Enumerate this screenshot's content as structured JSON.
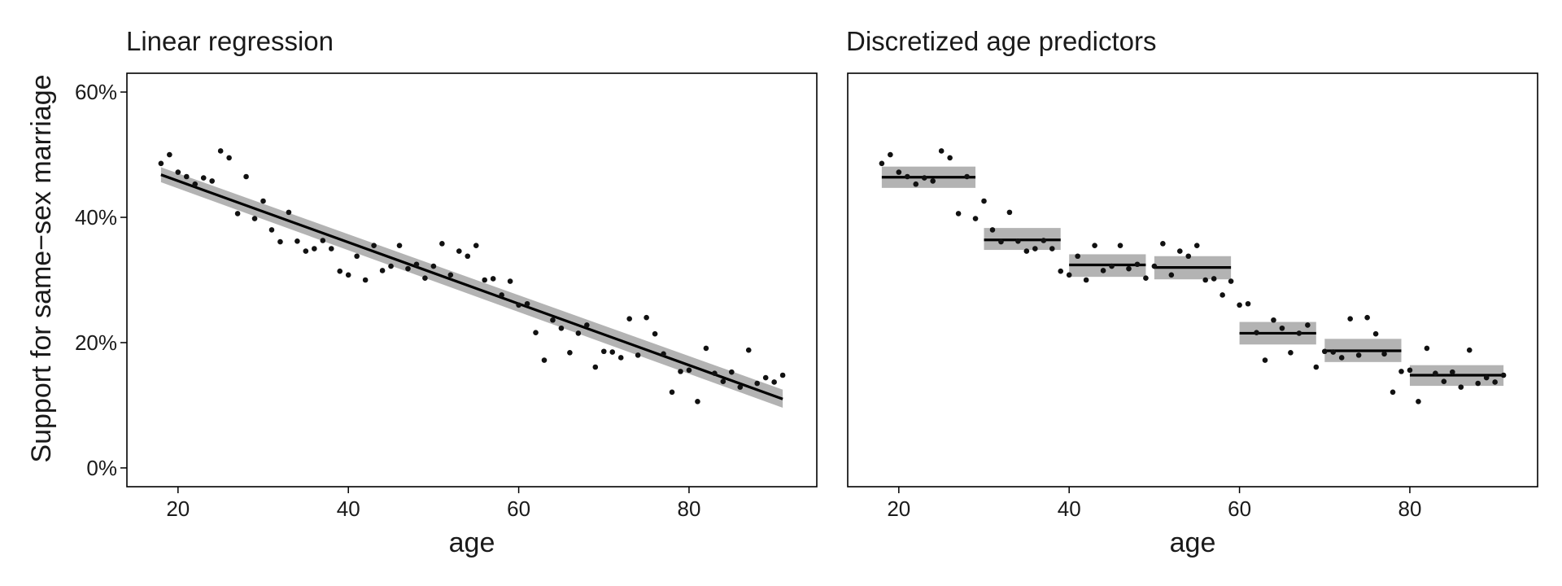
{
  "chart_data": [
    {
      "type": "scatter",
      "title": "Linear regression",
      "xlabel": "age",
      "ylabel": "Support for same−sex marriage",
      "xlim": [
        14,
        95
      ],
      "ylim": [
        -3,
        63
      ],
      "xticks": [
        20,
        40,
        60,
        80
      ],
      "xtick_labels": [
        "20",
        "40",
        "60",
        "80"
      ],
      "yticks": [
        0,
        20,
        40,
        60
      ],
      "ytick_labels": [
        "0%",
        "20%",
        "40%",
        "60%"
      ],
      "grid": false,
      "legend": "none",
      "series": [
        {
          "kind": "points",
          "x": [
            18,
            19,
            20,
            21,
            22,
            23,
            24,
            25,
            26,
            27,
            28,
            29,
            30,
            31,
            32,
            33,
            34,
            35,
            36,
            37,
            38,
            39,
            40,
            41,
            42,
            43,
            44,
            45,
            46,
            47,
            48,
            49,
            50,
            51,
            52,
            53,
            54,
            55,
            56,
            57,
            58,
            59,
            60,
            61,
            62,
            63,
            64,
            65,
            66,
            67,
            68,
            69,
            70,
            71,
            72,
            73,
            74,
            75,
            76,
            77,
            78,
            79,
            80,
            81,
            82,
            83,
            84,
            85,
            86,
            87,
            88,
            89,
            90,
            91
          ],
          "y": [
            48.6,
            50.0,
            47.2,
            46.5,
            45.3,
            46.3,
            45.8,
            50.6,
            49.5,
            40.6,
            46.5,
            39.8,
            42.6,
            38.0,
            36.1,
            40.8,
            36.2,
            34.6,
            35.0,
            36.3,
            35.0,
            31.4,
            30.8,
            33.8,
            30.0,
            35.5,
            31.5,
            32.2,
            35.5,
            31.8,
            32.5,
            30.3,
            32.2,
            35.8,
            30.8,
            34.6,
            33.8,
            35.5,
            30.0,
            30.2,
            27.6,
            29.8,
            26.0,
            26.2,
            21.6,
            17.2,
            23.6,
            22.3,
            18.4,
            21.5,
            22.8,
            16.1,
            18.6,
            18.5,
            17.6,
            23.8,
            18.0,
            24.0,
            21.4,
            18.2,
            12.1,
            15.4,
            15.6,
            10.6,
            19.1,
            15.1,
            13.8,
            15.3,
            12.9,
            18.8,
            13.5,
            14.4,
            13.7,
            14.8
          ]
        },
        {
          "kind": "fit-line",
          "x": [
            18,
            91
          ],
          "y": [
            46.8,
            11.0
          ],
          "ci_lower": [
            45.6,
            9.6
          ],
          "ci_upper": [
            48.0,
            12.5
          ]
        }
      ]
    },
    {
      "type": "scatter",
      "title": "Discretized age predictors",
      "xlabel": "age",
      "ylabel": "",
      "xlim": [
        14,
        95
      ],
      "ylim": [
        -3,
        63
      ],
      "xticks": [
        20,
        40,
        60,
        80
      ],
      "xtick_labels": [
        "20",
        "40",
        "60",
        "80"
      ],
      "grid": false,
      "legend": "none",
      "series": [
        {
          "kind": "points",
          "x": [
            18,
            19,
            20,
            21,
            22,
            23,
            24,
            25,
            26,
            27,
            28,
            29,
            30,
            31,
            32,
            33,
            34,
            35,
            36,
            37,
            38,
            39,
            40,
            41,
            42,
            43,
            44,
            45,
            46,
            47,
            48,
            49,
            50,
            51,
            52,
            53,
            54,
            55,
            56,
            57,
            58,
            59,
            60,
            61,
            62,
            63,
            64,
            65,
            66,
            67,
            68,
            69,
            70,
            71,
            72,
            73,
            74,
            75,
            76,
            77,
            78,
            79,
            80,
            81,
            82,
            83,
            84,
            85,
            86,
            87,
            88,
            89,
            90,
            91
          ],
          "y": [
            48.6,
            50.0,
            47.2,
            46.5,
            45.3,
            46.3,
            45.8,
            50.6,
            49.5,
            40.6,
            46.5,
            39.8,
            42.6,
            38.0,
            36.1,
            40.8,
            36.2,
            34.6,
            35.0,
            36.3,
            35.0,
            31.4,
            30.8,
            33.8,
            30.0,
            35.5,
            31.5,
            32.2,
            35.5,
            31.8,
            32.5,
            30.3,
            32.2,
            35.8,
            30.8,
            34.6,
            33.8,
            35.5,
            30.0,
            30.2,
            27.6,
            29.8,
            26.0,
            26.2,
            21.6,
            17.2,
            23.6,
            22.3,
            18.4,
            21.5,
            22.8,
            16.1,
            18.6,
            18.5,
            17.6,
            23.8,
            18.0,
            24.0,
            21.4,
            18.2,
            12.1,
            15.4,
            15.6,
            10.6,
            19.1,
            15.1,
            13.8,
            15.3,
            12.9,
            18.8,
            13.5,
            14.4,
            13.7,
            14.8
          ]
        },
        {
          "kind": "step-estimates",
          "segments": [
            {
              "x_start": 18,
              "x_end": 29,
              "y": 46.4,
              "ci_lower": 44.7,
              "ci_upper": 48.1
            },
            {
              "x_start": 30,
              "x_end": 39,
              "y": 36.4,
              "ci_lower": 34.8,
              "ci_upper": 38.3
            },
            {
              "x_start": 40,
              "x_end": 49,
              "y": 32.4,
              "ci_lower": 30.5,
              "ci_upper": 34.1
            },
            {
              "x_start": 50,
              "x_end": 59,
              "y": 32.0,
              "ci_lower": 30.1,
              "ci_upper": 33.8
            },
            {
              "x_start": 60,
              "x_end": 69,
              "y": 21.5,
              "ci_lower": 19.7,
              "ci_upper": 23.3
            },
            {
              "x_start": 70,
              "x_end": 79,
              "y": 18.7,
              "ci_lower": 16.9,
              "ci_upper": 20.6
            },
            {
              "x_start": 80,
              "x_end": 91,
              "y": 14.8,
              "ci_lower": 13.1,
              "ci_upper": 16.4
            }
          ]
        }
      ]
    }
  ],
  "colors": {
    "points": "#111111",
    "line": "#000000",
    "ribbon": "#b3b3b3",
    "frame": "#000000"
  }
}
